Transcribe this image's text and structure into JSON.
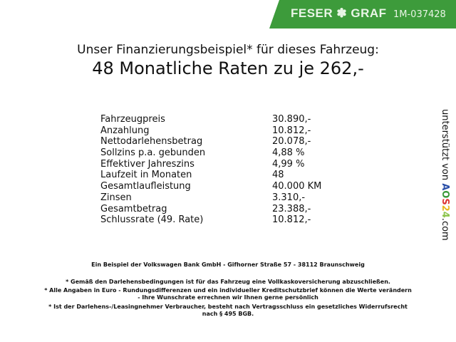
{
  "header": {
    "brand": "FESER ✽ GRAF",
    "vehicle_code": "1M-037428",
    "color": "#3d9b3b"
  },
  "title": {
    "line1": "Unser Finanzierungsbeispiel* für dieses Fahrzeug:",
    "line2": "48 Monatliche Raten zu je 262,-"
  },
  "rows": [
    {
      "label": "Fahrzeugpreis",
      "value": "30.890,-"
    },
    {
      "label": "Anzahlung",
      "value": "10.812,-"
    },
    {
      "label": "Nettodarlehensbetrag",
      "value": "20.078,-"
    },
    {
      "label": "Sollzins p.a. gebunden",
      "value": "4,88 %"
    },
    {
      "label": "Effektiver Jahreszins",
      "value": "4,99 %"
    },
    {
      "label": "Laufzeit in Monaten",
      "value": "48"
    },
    {
      "label": "Gesamtlaufleistung",
      "value": "40.000 KM"
    },
    {
      "label": "Zinsen",
      "value": "3.310,-"
    },
    {
      "label": "Gesamtbetrag",
      "value": "23.388,-"
    },
    {
      "label": "Schlussrate (49. Rate)",
      "value": "10.812,-"
    }
  ],
  "side": {
    "text": "unterstützt von",
    "logo": [
      "A",
      "O",
      "S",
      "2",
      "4"
    ],
    "suffix": ".com"
  },
  "footer": {
    "bank": "Ein Beispiel der Volkswagen Bank GmbH - Gifhorner Straße 57 - 38112 Braunschweig",
    "note1": "* Gemäß den Darlehensbedingungen ist für das Fahrzeug eine Vollkaskoversicherung abzuschließen.",
    "note2a": "* Alle Angaben in Euro - Rundungsdifferenzen und ein individueller Kreditschutzbrief können die Werte verändern",
    "note2b": "- Ihre Wunschrate errechnen wir Ihnen gerne persönlich",
    "note3a": "* Ist der Darlehens-/Leasingnehmer Verbraucher, besteht nach Vertragsschluss ein gesetzliches Widerrufsrecht",
    "note3b": "nach § 495 BGB."
  }
}
